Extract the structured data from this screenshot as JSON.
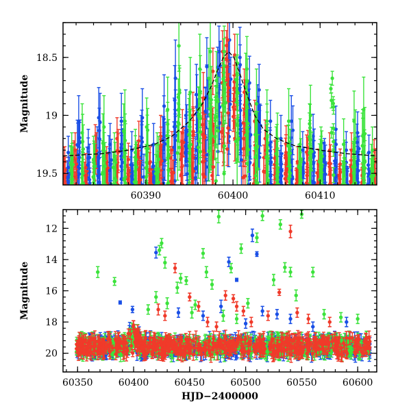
{
  "figure": {
    "colors": {
      "blue": "#1a4fe6",
      "red": "#f03a2a",
      "green": "#3ce33c",
      "model_line": "#000000"
    }
  },
  "chart_data": [
    {
      "type": "scatter",
      "panel": "top",
      "title": "",
      "xlabel": "",
      "ylabel": "Magnitude",
      "xlim": [
        60380.5,
        60416.5
      ],
      "ylim": [
        19.6,
        18.2
      ],
      "y_inverted": true,
      "xticks": [
        60390,
        60400,
        60410
      ],
      "yticks": [
        18.5,
        19,
        19.5
      ],
      "error_bars": true,
      "series": [
        {
          "color": "blue",
          "points": [
            [
              60381.1,
              19.32,
              0.14
            ],
            [
              60382.3,
              19.05,
              0.22
            ],
            [
              60383.4,
              19.28,
              0.16
            ],
            [
              60384.6,
              19.02,
              0.26
            ],
            [
              60385.9,
              19.25,
              0.18
            ],
            [
              60387.2,
              19.05,
              0.24
            ],
            [
              60388.4,
              19.3,
              0.16
            ],
            [
              60389.6,
              19.02,
              0.25
            ],
            [
              60390.9,
              19.25,
              0.18
            ],
            [
              60392.1,
              18.92,
              0.27
            ],
            [
              60393.4,
              18.68,
              0.33
            ],
            [
              60394.6,
              19.0,
              0.22
            ],
            [
              60395.8,
              18.82,
              0.26
            ],
            [
              60397.0,
              18.58,
              0.25
            ],
            [
              60398.4,
              18.45,
              0.22
            ],
            [
              60399.6,
              18.35,
              0.21
            ],
            [
              60400.8,
              18.5,
              0.26
            ],
            [
              60401.9,
              18.72,
              0.23
            ],
            [
              60403.0,
              18.78,
              0.22
            ],
            [
              60404.3,
              19.05,
              0.18
            ],
            [
              60405.5,
              19.2,
              0.2
            ],
            [
              60406.7,
              19.05,
              0.22
            ],
            [
              60408.0,
              19.3,
              0.16
            ],
            [
              60409.2,
              19.18,
              0.19
            ],
            [
              60410.5,
              19.35,
              0.15
            ],
            [
              60411.8,
              19.12,
              0.2
            ],
            [
              60413.0,
              19.3,
              0.16
            ],
            [
              60414.3,
              19.15,
              0.18
            ],
            [
              60415.6,
              19.32,
              0.15
            ]
          ]
        },
        {
          "color": "red",
          "points": [
            [
              60380.7,
              19.4,
              0.13
            ],
            [
              60381.9,
              19.3,
              0.15
            ],
            [
              60383.1,
              19.45,
              0.12
            ],
            [
              60384.2,
              19.25,
              0.17
            ],
            [
              60385.5,
              19.4,
              0.13
            ],
            [
              60386.7,
              19.2,
              0.18
            ],
            [
              60388.0,
              19.38,
              0.14
            ],
            [
              60389.2,
              19.22,
              0.17
            ],
            [
              60390.5,
              19.4,
              0.13
            ],
            [
              60391.7,
              19.18,
              0.18
            ],
            [
              60393.0,
              19.3,
              0.16
            ],
            [
              60394.2,
              19.15,
              0.2
            ],
            [
              60395.4,
              19.0,
              0.2
            ],
            [
              60396.6,
              18.85,
              0.22
            ],
            [
              60397.7,
              18.62,
              0.2
            ],
            [
              60398.8,
              18.45,
              0.18
            ],
            [
              60399.4,
              18.35,
              0.17
            ],
            [
              60400.2,
              18.48,
              0.18
            ],
            [
              60401.3,
              18.8,
              0.2
            ],
            [
              60402.5,
              19.05,
              0.18
            ],
            [
              60403.7,
              19.2,
              0.16
            ],
            [
              60404.9,
              19.35,
              0.14
            ],
            [
              60406.1,
              19.25,
              0.16
            ],
            [
              60407.4,
              19.4,
              0.13
            ],
            [
              60408.6,
              19.28,
              0.15
            ],
            [
              60409.8,
              19.42,
              0.13
            ],
            [
              60411.1,
              19.3,
              0.15
            ],
            [
              60412.3,
              19.42,
              0.13
            ],
            [
              60413.6,
              19.3,
              0.15
            ],
            [
              60414.9,
              19.45,
              0.12
            ],
            [
              60416.2,
              19.35,
              0.14
            ]
          ]
        },
        {
          "color": "green",
          "points": [
            [
              60381.5,
              19.35,
              0.2
            ],
            [
              60382.7,
              19.15,
              0.25
            ],
            [
              60384.0,
              19.38,
              0.2
            ],
            [
              60385.2,
              19.1,
              0.27
            ],
            [
              60386.4,
              19.35,
              0.2
            ],
            [
              60387.6,
              19.05,
              0.27
            ],
            [
              60388.8,
              19.32,
              0.2
            ],
            [
              60390.1,
              19.1,
              0.25
            ],
            [
              60391.3,
              19.35,
              0.2
            ],
            [
              60392.5,
              18.95,
              0.28
            ],
            [
              60393.8,
              18.4,
              0.22
            ],
            [
              60395.1,
              18.8,
              0.3
            ],
            [
              60396.2,
              18.6,
              0.3
            ],
            [
              60397.4,
              18.45,
              0.28
            ],
            [
              60398.1,
              18.7,
              0.25
            ],
            [
              60399.0,
              18.45,
              0.22
            ],
            [
              60400.5,
              18.55,
              0.25
            ],
            [
              60401.6,
              18.6,
              0.28
            ],
            [
              60402.7,
              18.9,
              0.3
            ],
            [
              60403.9,
              19.05,
              0.27
            ],
            [
              60405.1,
              19.2,
              0.22
            ],
            [
              60406.4,
              19.05,
              0.28
            ],
            [
              60407.7,
              19.25,
              0.22
            ],
            [
              60408.9,
              19.0,
              0.26
            ],
            [
              60410.1,
              19.3,
              0.2
            ],
            [
              60411.4,
              18.68,
              0.06
            ],
            [
              60412.7,
              19.25,
              0.22
            ],
            [
              60413.9,
              19.05,
              0.26
            ],
            [
              60415.0,
              18.95,
              0.28
            ],
            [
              60416.0,
              19.3,
              0.2
            ]
          ]
        }
      ],
      "model_curve": [
        [
          60380.5,
          19.35
        ],
        [
          60385,
          19.33
        ],
        [
          60388,
          19.3
        ],
        [
          60391,
          19.25
        ],
        [
          60393,
          19.18
        ],
        [
          60395,
          19.05
        ],
        [
          60396.5,
          18.9
        ],
        [
          60397.5,
          18.75
        ],
        [
          60398.3,
          18.6
        ],
        [
          60398.9,
          18.5
        ],
        [
          60399.5,
          18.45
        ],
        [
          60400.1,
          18.5
        ],
        [
          60400.7,
          18.62
        ],
        [
          60401.5,
          18.8
        ],
        [
          60402.5,
          19.0
        ],
        [
          60403.5,
          19.12
        ],
        [
          60405,
          19.2
        ],
        [
          60407,
          19.26
        ],
        [
          60410,
          19.3
        ],
        [
          60413,
          19.33
        ],
        [
          60416.5,
          19.35
        ]
      ]
    },
    {
      "type": "scatter",
      "panel": "bottom",
      "title": "",
      "xlabel": "HJD−2400000",
      "ylabel": "Magnitude",
      "xlim": [
        60337,
        60617
      ],
      "ylim": [
        21.2,
        10.8
      ],
      "y_inverted": true,
      "xticks": [
        60350,
        60400,
        60450,
        60500,
        60550,
        60600
      ],
      "yticks": [
        12,
        14,
        16,
        18,
        20
      ],
      "error_bars": true,
      "series": [
        {
          "color": "blue",
          "points": [
            [
              60388,
              16.75,
              0.1
            ],
            [
              60399,
              17.2,
              0.2
            ],
            [
              60420,
              13.55,
              0.35
            ],
            [
              60440,
              17.4,
              0.3
            ],
            [
              60462,
              17.6,
              0.3
            ],
            [
              60478,
              17.0,
              0.4
            ],
            [
              60485,
              14.15,
              0.3
            ],
            [
              60492,
              15.3,
              0.1
            ],
            [
              60500,
              18.1,
              0.3
            ],
            [
              60506,
              12.45,
              0.4
            ],
            [
              60510,
              13.65,
              0.15
            ],
            [
              60515,
              17.3,
              0.3
            ],
            [
              60528,
              17.5,
              0.3
            ],
            [
              60540,
              17.8,
              0.3
            ],
            [
              60560,
              18.3,
              0.3
            ],
            [
              60590,
              18.0,
              0.3
            ]
          ]
        },
        {
          "color": "red",
          "points": [
            [
              60422,
              17.2,
              0.35
            ],
            [
              60428,
              17.6,
              0.3
            ],
            [
              60437,
              14.55,
              0.3
            ],
            [
              60450,
              16.4,
              0.25
            ],
            [
              60458,
              17.0,
              0.3
            ],
            [
              60466,
              18.0,
              0.3
            ],
            [
              60474,
              18.3,
              0.3
            ],
            [
              60482,
              16.3,
              0.3
            ],
            [
              60489,
              16.5,
              0.25
            ],
            [
              60492,
              17.0,
              0.3
            ],
            [
              60498,
              17.3,
              0.3
            ],
            [
              60505,
              18.0,
              0.3
            ],
            [
              60520,
              17.6,
              0.3
            ],
            [
              60530,
              16.1,
              0.2
            ],
            [
              60540,
              12.2,
              0.4
            ],
            [
              60546,
              17.4,
              0.3
            ],
            [
              60556,
              17.8,
              0.3
            ],
            [
              60575,
              18.0,
              0.3
            ]
          ]
        },
        {
          "color": "green",
          "points": [
            [
              60368,
              14.8,
              0.35
            ],
            [
              60383,
              15.4,
              0.25
            ],
            [
              60413,
              17.2,
              0.3
            ],
            [
              60420,
              16.4,
              0.35
            ],
            [
              60423,
              13.4,
              0.3
            ],
            [
              60425,
              12.95,
              0.3
            ],
            [
              60428,
              14.2,
              0.35
            ],
            [
              60430,
              16.8,
              0.35
            ],
            [
              60439,
              15.8,
              0.35
            ],
            [
              60442,
              15.2,
              0.3
            ],
            [
              60447,
              15.35,
              0.25
            ],
            [
              60452,
              17.4,
              0.35
            ],
            [
              60455,
              16.9,
              0.3
            ],
            [
              60462,
              13.6,
              0.3
            ],
            [
              60465,
              14.8,
              0.35
            ],
            [
              60470,
              15.6,
              0.3
            ],
            [
              60476,
              11.25,
              0.4
            ],
            [
              60480,
              17.6,
              0.35
            ],
            [
              60487,
              14.55,
              0.3
            ],
            [
              60492,
              17.8,
              0.3
            ],
            [
              60496,
              13.3,
              0.3
            ],
            [
              60502,
              16.8,
              0.3
            ],
            [
              60510,
              12.6,
              0.3
            ],
            [
              60515,
              11.2,
              0.3
            ],
            [
              60525,
              15.3,
              0.35
            ],
            [
              60531,
              11.75,
              0.3
            ],
            [
              60535,
              14.5,
              0.3
            ],
            [
              60540,
              14.8,
              0.3
            ],
            [
              60545,
              16.3,
              0.35
            ],
            [
              60550,
              11.1,
              0.25
            ],
            [
              60560,
              14.8,
              0.3
            ],
            [
              60570,
              17.5,
              0.3
            ],
            [
              60585,
              17.7,
              0.3
            ],
            [
              60600,
              17.8,
              0.3
            ]
          ]
        }
      ]
    }
  ]
}
